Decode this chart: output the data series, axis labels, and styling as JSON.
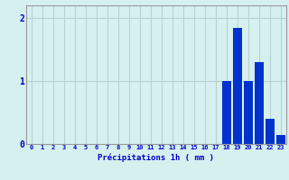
{
  "hours": [
    0,
    1,
    2,
    3,
    4,
    5,
    6,
    7,
    8,
    9,
    10,
    11,
    12,
    13,
    14,
    15,
    16,
    17,
    18,
    19,
    20,
    21,
    22,
    23
  ],
  "values": [
    0,
    0,
    0,
    0,
    0,
    0,
    0,
    0,
    0,
    0,
    0,
    0,
    0,
    0,
    0,
    0,
    0,
    0,
    1.0,
    1.85,
    1.0,
    1.3,
    0.4,
    0.15
  ],
  "bar_color": "#0033cc",
  "bg_color": "#d6f0f0",
  "grid_color": "#b8d0d0",
  "xlabel": "Précipitations 1h ( mm )",
  "xlabel_color": "#0000cc",
  "tick_color": "#0000cc",
  "ylim": [
    0,
    2.2
  ],
  "yticks": [
    0,
    1,
    2
  ],
  "xlim": [
    -0.5,
    23.5
  ]
}
